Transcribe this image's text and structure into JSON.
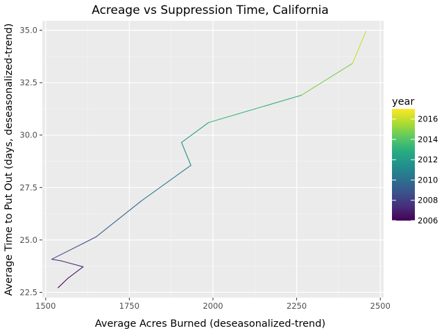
{
  "chart_data": {
    "type": "line",
    "title": "Acreage vs Suppression Time, California",
    "xlabel": "Average Acres Burned (deseasonalized-trend)",
    "ylabel": "Average Time to Put Out (days, deseasonalized-trend)",
    "xlim": [
      1490,
      2510
    ],
    "ylim": [
      22.25,
      35.45
    ],
    "xticks": [
      1500,
      1750,
      2000,
      2250,
      2500
    ],
    "xtick_labels": [
      "1500",
      "1750",
      "2000",
      "2250",
      "2500"
    ],
    "yticks": [
      22.5,
      25.0,
      27.5,
      30.0,
      32.5,
      35.0
    ],
    "ytick_labels": [
      "22.5",
      "25.0",
      "27.5",
      "30.0",
      "32.5",
      "35.0"
    ],
    "grid": true,
    "background": "#ebebeb",
    "legend": {
      "title": "year",
      "position": "right",
      "type": "colorbar",
      "range": [
        2006,
        2017
      ],
      "ticks": [
        2006,
        2008,
        2010,
        2012,
        2014,
        2016
      ],
      "tick_labels": [
        "2006",
        "2008",
        "2010",
        "2012",
        "2014",
        "2016"
      ],
      "colormap": "viridis"
    },
    "series": [
      {
        "points": [
          {
            "x": 1537,
            "y": 22.72,
            "year": 2006.0
          },
          {
            "x": 1567,
            "y": 23.18,
            "year": 2006.4
          },
          {
            "x": 1612,
            "y": 23.72,
            "year": 2007.0
          },
          {
            "x": 1547,
            "y": 24.0,
            "year": 2007.6
          },
          {
            "x": 1518,
            "y": 24.08,
            "year": 2008.0
          },
          {
            "x": 1651,
            "y": 25.15,
            "year": 2009.0
          },
          {
            "x": 1785,
            "y": 26.85,
            "year": 2010.0
          },
          {
            "x": 1934,
            "y": 28.56,
            "year": 2011.0
          },
          {
            "x": 1906,
            "y": 29.65,
            "year": 2011.5
          },
          {
            "x": 1987,
            "y": 30.6,
            "year": 2012.5
          },
          {
            "x": 2264,
            "y": 31.9,
            "year": 2014.0
          },
          {
            "x": 2417,
            "y": 33.42,
            "year": 2015.5
          },
          {
            "x": 2457,
            "y": 34.95,
            "year": 2016.7
          }
        ]
      }
    ]
  }
}
